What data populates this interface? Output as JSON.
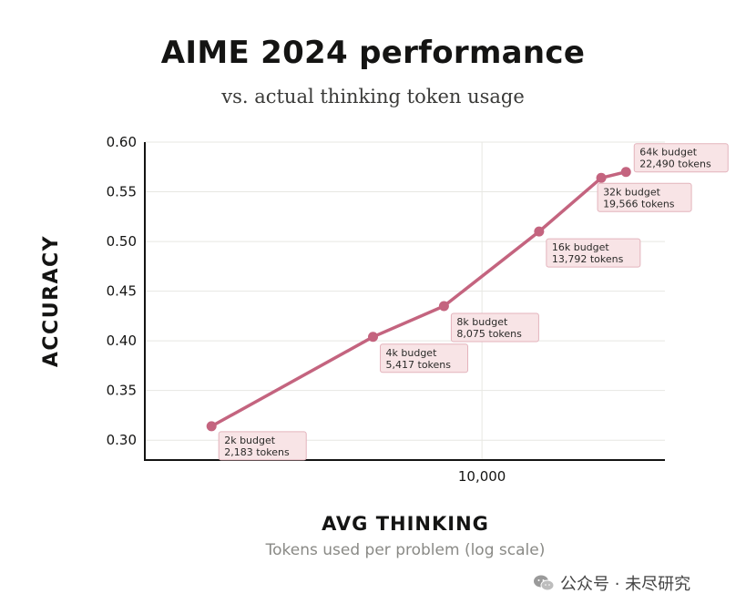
{
  "chart_data": {
    "type": "line",
    "title": "AIME 2024 performance",
    "subtitle": "vs. actual thinking token usage",
    "xlabel": "AVG THINKING",
    "xsublabel": "Tokens used per problem (log scale)",
    "ylabel": "ACCURACY",
    "x_scale": "log",
    "xlim": [
      1500,
      28000
    ],
    "ylim": [
      0.28,
      0.6
    ],
    "x_ticks": [
      {
        "value": 10000,
        "label": "10,000"
      }
    ],
    "y_ticks": [
      {
        "value": 0.3,
        "label": "0.30"
      },
      {
        "value": 0.35,
        "label": "0.35"
      },
      {
        "value": 0.4,
        "label": "0.40"
      },
      {
        "value": 0.45,
        "label": "0.45"
      },
      {
        "value": 0.5,
        "label": "0.50"
      },
      {
        "value": 0.55,
        "label": "0.55"
      },
      {
        "value": 0.6,
        "label": "0.60"
      }
    ],
    "grid": true,
    "colors": {
      "line": "#c4647f",
      "label_bg": "#f8e4e6",
      "label_border": "#e3b3bc",
      "grid": "#e7e7e2",
      "axis": "#141413"
    },
    "series": [
      {
        "points": [
          {
            "x": 2183,
            "y": 0.314,
            "budget": "2k budget",
            "tokens": "2,183 tokens"
          },
          {
            "x": 5417,
            "y": 0.404,
            "budget": "4k budget",
            "tokens": "5,417 tokens"
          },
          {
            "x": 8075,
            "y": 0.435,
            "budget": "8k budget",
            "tokens": "8,075 tokens"
          },
          {
            "x": 13792,
            "y": 0.51,
            "budget": "16k budget",
            "tokens": "13,792 tokens"
          },
          {
            "x": 19566,
            "y": 0.564,
            "budget": "32k budget",
            "tokens": "19,566 tokens"
          },
          {
            "x": 22490,
            "y": 0.57,
            "budget": "64k budget",
            "tokens": "22,490 tokens"
          }
        ]
      }
    ]
  },
  "watermark": {
    "text": "公众号 · 未尽研究",
    "icon": "wechat-icon"
  }
}
